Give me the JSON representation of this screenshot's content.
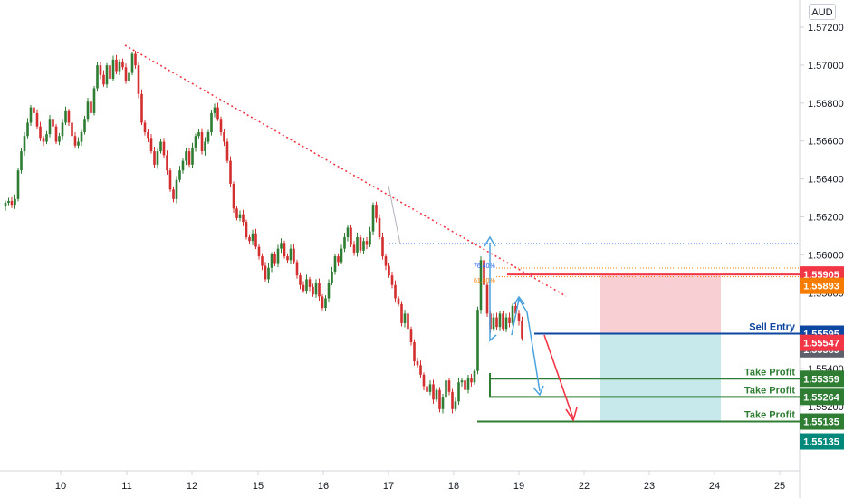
{
  "currency": "AUD",
  "chart_data": {
    "type": "candlestick",
    "title": "",
    "xlabel": "",
    "ylabel": "",
    "ylim": [
      1.549,
      1.5728
    ],
    "y_ticks": [
      "1.57200",
      "1.57000",
      "1.56800",
      "1.56600",
      "1.56400",
      "1.56200",
      "1.56000",
      "1.55800",
      "1.55600",
      "1.55400",
      "1.55200",
      "1.55000"
    ],
    "x_ticks": [
      "10",
      "11",
      "12",
      "15",
      "16",
      "17",
      "18",
      "19",
      "22",
      "23",
      "24",
      "25"
    ],
    "candles_close": [
      1.5628,
      1.5629,
      1.5627,
      1.563,
      1.5645,
      1.5655,
      1.5663,
      1.567,
      1.5678,
      1.5675,
      1.5668,
      1.5662,
      1.566,
      1.5664,
      1.5672,
      1.5668,
      1.566,
      1.5663,
      1.567,
      1.5676,
      1.567,
      1.5663,
      1.5658,
      1.566,
      1.5665,
      1.5672,
      1.5681,
      1.5675,
      1.5688,
      1.57,
      1.5695,
      1.569,
      1.57,
      1.5693,
      1.5703,
      1.5697,
      1.5702,
      1.5699,
      1.5692,
      1.5696,
      1.5706,
      1.57,
      1.5685,
      1.567,
      1.5665,
      1.5662,
      1.5655,
      1.5648,
      1.5655,
      1.566,
      1.5653,
      1.5645,
      1.5635,
      1.563,
      1.564,
      1.5645,
      1.565,
      1.5655,
      1.5648,
      1.5657,
      1.5663,
      1.5665,
      1.5655,
      1.566,
      1.5665,
      1.5675,
      1.5678,
      1.5672,
      1.5665,
      1.566,
      1.565,
      1.5638,
      1.5625,
      1.562,
      1.5622,
      1.5618,
      1.561,
      1.5608,
      1.5612,
      1.5605,
      1.56,
      1.5595,
      1.5588,
      1.5594,
      1.5601,
      1.5596,
      1.5604,
      1.5607,
      1.56,
      1.5598,
      1.5604,
      1.5597,
      1.559,
      1.5585,
      1.5582,
      1.5588,
      1.5584,
      1.558,
      1.5586,
      1.5579,
      1.5573,
      1.5578,
      1.5586,
      1.5592,
      1.56,
      1.5597,
      1.5604,
      1.561,
      1.5615,
      1.5606,
      1.5602,
      1.561,
      1.5603,
      1.5608,
      1.5606,
      1.5613,
      1.5627,
      1.562,
      1.561,
      1.56,
      1.5595,
      1.559,
      1.5585,
      1.5578,
      1.5575,
      1.5565,
      1.557,
      1.5562,
      1.5555,
      1.5545,
      1.5543,
      1.5538,
      1.5532,
      1.5529,
      1.5533,
      1.5525,
      1.553,
      1.552,
      1.5526,
      1.5535,
      1.5529,
      1.552,
      1.5524,
      1.5534,
      1.5535,
      1.553,
      1.5536,
      1.5534,
      1.554,
      1.5572,
      1.5598,
      1.5585,
      1.557,
      1.5562,
      1.5568,
      1.5563,
      1.557,
      1.5562,
      1.5568,
      1.5565,
      1.5574,
      1.557,
      1.5566,
      1.5557
    ],
    "levels": [
      {
        "label": "",
        "value": "1.55905",
        "color": "#f23645"
      },
      {
        "label": "",
        "value": "1.55893",
        "color": "#f57c00"
      },
      {
        "label": "Sell Entry",
        "value": "1.55595",
        "color": "#0d47a1"
      },
      {
        "label": "",
        "value": "1.55589",
        "color": "#5d606b"
      },
      {
        "label": "",
        "value": "1.55547",
        "color": "#f23645"
      },
      {
        "label": "Take Profit",
        "value": "1.55359",
        "color": "#2e7d32"
      },
      {
        "label": "Take Profit",
        "value": "1.55264",
        "color": "#2e7d32"
      },
      {
        "label": "Take Profit",
        "value": "1.55135",
        "color": "#2e7d32"
      },
      {
        "label": "",
        "value": "1.55135",
        "color": "#00897b"
      }
    ],
    "fib_labels": [
      "76.40%",
      "61.80%"
    ],
    "colors": {
      "up": "#26a69a",
      "up_body": "#2e7d32",
      "down": "#d32f2f",
      "trend": "#f23645",
      "risk": "#f8d0d4",
      "reward": "#c8e9ec"
    }
  }
}
